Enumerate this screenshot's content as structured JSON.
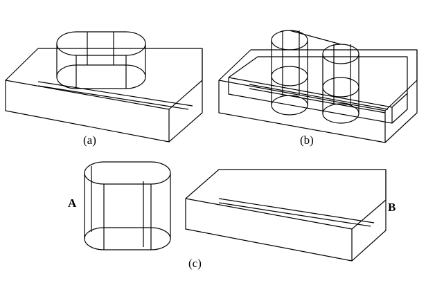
{
  "captions": {
    "a": "(a)",
    "b": "(b)",
    "c": "(c)"
  },
  "labels": {
    "A": "A",
    "B": "B"
  }
}
